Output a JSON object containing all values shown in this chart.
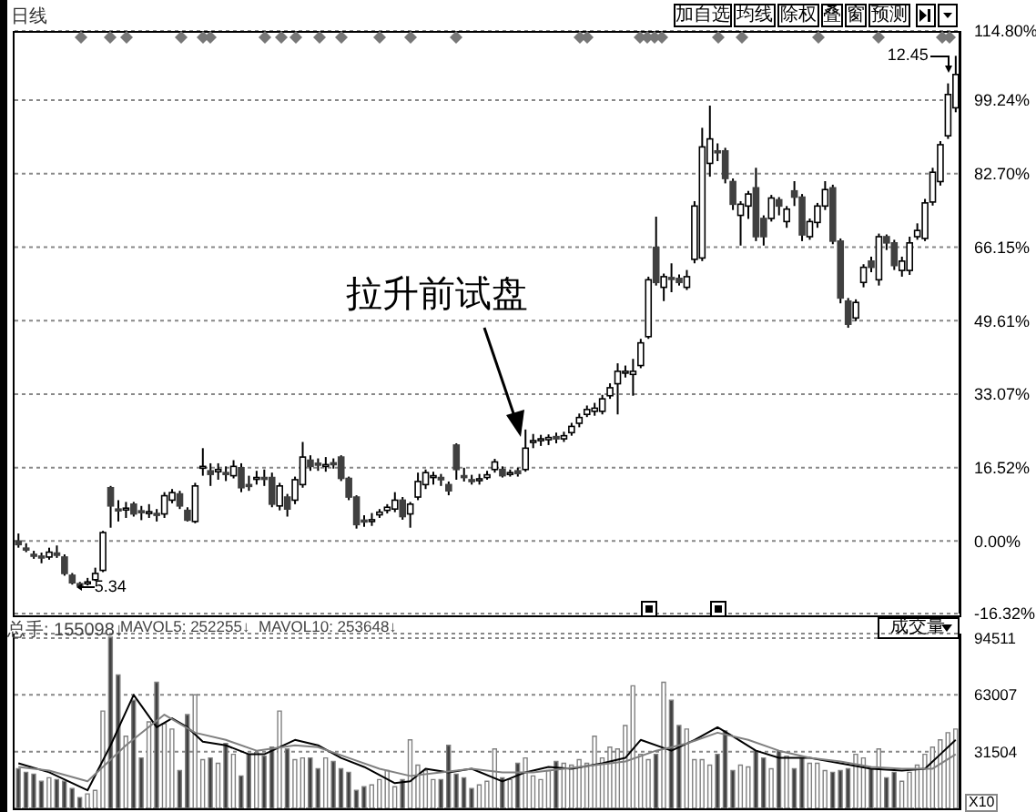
{
  "chart_data": [
    {
      "type": "candlestick",
      "subtitle": "日线",
      "legend": false,
      "grid": "y",
      "tick_labels": "y",
      "categories": [
        null,
        null,
        null,
        null,
        null,
        null,
        null,
        null,
        null,
        null,
        null,
        null,
        null,
        null,
        null,
        null,
        null,
        null,
        null,
        null,
        null,
        null,
        null,
        null,
        null,
        null,
        null,
        null,
        null,
        null,
        null,
        null,
        null,
        null,
        null,
        null,
        null,
        null,
        null,
        null,
        null,
        null,
        null,
        null,
        null,
        null,
        null,
        null,
        null,
        null,
        null,
        null,
        null,
        null,
        null,
        null,
        null,
        null,
        null,
        null,
        null,
        null,
        null,
        null,
        null,
        null,
        null,
        null,
        null,
        null,
        null,
        null,
        null,
        null,
        null,
        null,
        null,
        null,
        null,
        null,
        null,
        null,
        null,
        null,
        null,
        null,
        null,
        null,
        null,
        null,
        null,
        null,
        null,
        null,
        null,
        null,
        null,
        null,
        null,
        null,
        null,
        null,
        null,
        null,
        null,
        null,
        null,
        null,
        null,
        null,
        null,
        null,
        null,
        null,
        null,
        null,
        null,
        null,
        null,
        null,
        null,
        null,
        null
      ],
      "ohlc": [
        [
          0,
          1.7,
          -1.5,
          -0.8
        ],
        [
          -1.6,
          -0.5,
          -2.5,
          -1.8
        ],
        [
          -3.0,
          -2.2,
          -4.0,
          -3.2
        ],
        [
          -3.4,
          -2.6,
          -5.0,
          -3.6
        ],
        [
          -3.6,
          -1.5,
          -4.2,
          -2.5
        ],
        [
          -2.7,
          -1.0,
          -3.8,
          -3.2
        ],
        [
          -3.6,
          -3.0,
          -7.8,
          -7.3
        ],
        [
          -7.7,
          -7.2,
          -9.8,
          -9.4
        ],
        [
          -9.6,
          -9.2,
          -10.3,
          -10.1
        ],
        [
          -9.6,
          -8.3,
          -10.0,
          -9.2
        ],
        [
          -8.7,
          -6.0,
          -9.0,
          -7.3
        ],
        [
          -6.6,
          2.3,
          -7.0,
          1.9
        ],
        [
          12.0,
          12.4,
          3.0,
          7.9
        ],
        [
          7.2,
          9.2,
          4.4,
          6.9
        ],
        [
          7.0,
          8.8,
          5.2,
          7.4
        ],
        [
          8.3,
          8.8,
          5.5,
          6.1
        ],
        [
          6.8,
          7.9,
          4.7,
          6.5
        ],
        [
          6.3,
          8.3,
          5.2,
          6.6
        ],
        [
          6.2,
          7.2,
          4.4,
          5.9
        ],
        [
          6.1,
          11.0,
          5.2,
          10.2
        ],
        [
          9.2,
          11.7,
          8.5,
          10.9
        ],
        [
          10.6,
          11.3,
          7.2,
          7.9
        ],
        [
          6.9,
          7.6,
          4.4,
          4.7
        ],
        [
          4.4,
          13.1,
          4.0,
          12.4
        ],
        [
          16.5,
          20.9,
          14.7,
          16.8
        ],
        [
          15.8,
          17.5,
          12.4,
          15.0
        ],
        [
          15.6,
          17.5,
          13.8,
          16.1
        ],
        [
          15.4,
          16.8,
          13.5,
          15.0
        ],
        [
          14.7,
          18.2,
          14.1,
          16.8
        ],
        [
          16.5,
          17.5,
          11.0,
          12.0
        ],
        [
          12.7,
          14.7,
          11.3,
          12.4
        ],
        [
          13.9,
          15.8,
          12.7,
          14.3
        ],
        [
          14.3,
          16.1,
          12.4,
          14.0
        ],
        [
          14.3,
          15.4,
          7.6,
          8.3
        ],
        [
          7.9,
          13.1,
          6.9,
          12.4
        ],
        [
          9.9,
          10.6,
          5.5,
          7.2
        ],
        [
          9.2,
          14.5,
          8.3,
          13.8
        ],
        [
          12.7,
          22.3,
          12.0,
          18.9
        ],
        [
          18.2,
          19.3,
          15.8,
          16.8
        ],
        [
          17.5,
          18.6,
          15.8,
          17.2
        ],
        [
          16.8,
          18.9,
          15.6,
          17.2
        ],
        [
          17.6,
          18.6,
          16.3,
          17.4
        ],
        [
          18.9,
          19.3,
          13.5,
          14.1
        ],
        [
          14.1,
          14.5,
          9.2,
          9.9
        ],
        [
          9.9,
          10.3,
          2.8,
          3.7
        ],
        [
          4.7,
          5.8,
          3.2,
          4.4
        ],
        [
          4.4,
          6.3,
          3.4,
          4.8
        ],
        [
          5.9,
          7.2,
          5.2,
          6.5
        ],
        [
          6.9,
          8.3,
          6.2,
          7.6
        ],
        [
          7.2,
          11.0,
          6.5,
          9.2
        ],
        [
          9.2,
          9.9,
          4.8,
          5.5
        ],
        [
          6.1,
          8.8,
          3.0,
          8.3
        ],
        [
          9.9,
          15.4,
          9.2,
          13.4
        ],
        [
          12.7,
          16.1,
          11.7,
          15.4
        ],
        [
          14.3,
          15.6,
          12.7,
          14.7
        ],
        [
          14.3,
          15.1,
          12.4,
          13.8
        ],
        [
          12.7,
          13.4,
          10.3,
          11.3
        ],
        [
          21.6,
          22.0,
          13.8,
          16.1
        ],
        [
          14.7,
          16.5,
          13.4,
          14.4
        ],
        [
          13.8,
          14.9,
          12.7,
          13.4
        ],
        [
          13.6,
          15.1,
          12.7,
          14.0
        ],
        [
          14.3,
          15.8,
          13.8,
          14.9
        ],
        [
          16.1,
          18.5,
          15.4,
          17.8
        ],
        [
          16.1,
          16.8,
          14.3,
          14.7
        ],
        [
          15.2,
          16.1,
          14.5,
          15.4
        ],
        [
          15.8,
          16.5,
          14.5,
          15.2
        ],
        [
          16.1,
          25.1,
          15.6,
          20.9
        ],
        [
          22.2,
          24.1,
          20.9,
          22.6
        ],
        [
          22.6,
          23.9,
          21.4,
          23.0
        ],
        [
          22.8,
          24.0,
          21.6,
          23.3
        ],
        [
          23.5,
          24.4,
          22.0,
          23.0
        ],
        [
          23.0,
          24.6,
          22.3,
          23.7
        ],
        [
          24.4,
          26.6,
          23.7,
          25.8
        ],
        [
          26.5,
          28.7,
          25.6,
          27.8
        ],
        [
          28.5,
          30.5,
          27.9,
          29.6
        ],
        [
          29.2,
          31.1,
          28.2,
          29.9
        ],
        [
          29.2,
          32.9,
          28.5,
          32.0
        ],
        [
          32.7,
          35.5,
          32.0,
          34.5
        ],
        [
          35.4,
          40.0,
          28.5,
          38.2
        ],
        [
          37.8,
          39.5,
          36.8,
          38.2
        ],
        [
          37.5,
          41.0,
          32.7,
          38.2
        ],
        [
          39.5,
          45.5,
          38.9,
          44.6
        ],
        [
          46.0,
          59.5,
          45.5,
          58.8
        ],
        [
          66.1,
          73.0,
          57.5,
          58.2
        ],
        [
          57.1,
          60.2,
          54.0,
          59.5
        ],
        [
          59.3,
          62.5,
          56.0,
          59.0
        ],
        [
          59.1,
          60.0,
          57.5,
          58.2
        ],
        [
          57.1,
          61.0,
          56.5,
          59.5
        ],
        [
          63.4,
          76.5,
          62.5,
          75.4
        ],
        [
          63.7,
          93.0,
          63.0,
          88.7
        ],
        [
          85.0,
          98.0,
          82.0,
          90.5
        ],
        [
          87.8,
          89.5,
          85.5,
          87.5
        ],
        [
          87.8,
          88.5,
          80.5,
          81.6
        ],
        [
          80.9,
          81.6,
          74.5,
          75.8
        ],
        [
          73.3,
          76.5,
          66.5,
          75.8
        ],
        [
          75.4,
          78.8,
          72.5,
          78.1
        ],
        [
          79.5,
          84.0,
          67.5,
          68.5
        ],
        [
          72.6,
          73.3,
          66.5,
          68.5
        ],
        [
          72.6,
          77.9,
          71.9,
          77.2
        ],
        [
          76.8,
          77.4,
          73.3,
          75.4
        ],
        [
          71.9,
          75.4,
          70.5,
          74.7
        ],
        [
          78.8,
          81.0,
          75.4,
          77.4
        ],
        [
          77.4,
          78.1,
          67.5,
          68.9
        ],
        [
          68.5,
          72.6,
          67.8,
          71.9
        ],
        [
          71.7,
          76.1,
          70.5,
          75.4
        ],
        [
          75.4,
          81.0,
          74.5,
          79.1
        ],
        [
          79.5,
          80.2,
          66.8,
          67.5
        ],
        [
          67.5,
          68.1,
          53.5,
          54.7
        ],
        [
          54.0,
          54.7,
          48.0,
          48.8
        ],
        [
          50.2,
          54.4,
          49.5,
          53.7
        ],
        [
          58.2,
          62.3,
          57.1,
          61.6
        ],
        [
          63.0,
          64.0,
          60.5,
          61.6
        ],
        [
          58.8,
          69.2,
          57.5,
          68.5
        ],
        [
          68.5,
          69.0,
          65.5,
          67.1
        ],
        [
          67.1,
          67.8,
          61.0,
          62.0
        ],
        [
          60.9,
          64.0,
          59.5,
          63.0
        ],
        [
          60.9,
          68.5,
          59.9,
          67.1
        ],
        [
          68.5,
          71.5,
          67.8,
          69.9
        ],
        [
          68.1,
          77.0,
          67.5,
          76.1
        ],
        [
          76.3,
          84.0,
          75.5,
          83.0
        ],
        [
          80.9,
          90.0,
          80.0,
          89.2
        ],
        [
          91.2,
          103.0,
          90.5,
          100.5
        ],
        [
          97.5,
          109.2,
          96.5,
          105.0
        ]
      ],
      "ylim": [
        -16.32,
        114.8
      ],
      "yticks": [
        {
          "value": -16.32,
          "label": "-16.32%"
        },
        {
          "value": 0,
          "label": "0.00%"
        },
        {
          "value": 16.52,
          "label": "16.52%"
        },
        {
          "value": 33.07,
          "label": "33.07%"
        },
        {
          "value": 49.61,
          "label": "49.61%"
        },
        {
          "value": 66.15,
          "label": "66.15%"
        },
        {
          "value": 82.7,
          "label": "82.70%"
        },
        {
          "value": 99.24,
          "label": "99.24%"
        },
        {
          "value": 114.8,
          "label": "114.80%"
        }
      ],
      "annotations": [
        "拉升前试盘",
        "加自选",
        "均线",
        "除权",
        "叠",
        "窗",
        "预测",
        "5.34",
        "12.45"
      ]
    },
    {
      "type": "bar",
      "legend": false,
      "grid": "y",
      "tick_labels": "y",
      "categories": [
        null,
        null,
        null,
        null,
        null,
        null,
        null,
        null,
        null,
        null,
        null,
        null,
        null,
        null,
        null,
        null,
        null,
        null,
        null,
        null,
        null,
        null,
        null,
        null,
        null,
        null,
        null,
        null,
        null,
        null,
        null,
        null,
        null,
        null,
        null,
        null,
        null,
        null,
        null,
        null,
        null,
        null,
        null,
        null,
        null,
        null,
        null,
        null,
        null,
        null,
        null,
        null,
        null,
        null,
        null,
        null,
        null,
        null,
        null,
        null,
        null,
        null,
        null,
        null,
        null,
        null,
        null,
        null,
        null,
        null,
        null,
        null,
        null,
        null,
        null,
        null,
        null,
        null,
        null,
        null,
        null,
        null,
        null,
        null,
        null,
        null,
        null,
        null,
        null,
        null,
        null,
        null,
        null,
        null,
        null,
        null,
        null,
        null,
        null,
        null,
        null,
        null,
        null,
        null,
        null,
        null,
        null,
        null,
        null,
        null,
        null,
        null,
        null,
        null,
        null,
        null,
        null,
        null,
        null,
        null,
        null,
        null,
        null
      ],
      "series": [
        {
          "type": "bar",
          "values": [
            22000,
            20000,
            19000,
            15000,
            17000,
            16000,
            15000,
            11000,
            6000,
            8000,
            10000,
            54000,
            95000,
            74000,
            40000,
            60000,
            28000,
            48000,
            70000,
            47000,
            44000,
            21000,
            52000,
            63000,
            27000,
            28000,
            25000,
            36000,
            30000,
            18000,
            30000,
            31000,
            29000,
            34000,
            54000,
            33000,
            27000,
            28000,
            28000,
            22000,
            28000,
            26000,
            22000,
            20000,
            10000,
            12000,
            13000,
            16000,
            21000,
            12000,
            16000,
            38000,
            24000,
            21000,
            16000,
            16000,
            35000,
            19000,
            17000,
            11000,
            13000,
            15000,
            33000,
            17000,
            16000,
            25000,
            28000,
            18000,
            16000,
            21000,
            26000,
            25000,
            24000,
            27000,
            25000,
            40000,
            28000,
            34000,
            33000,
            46000,
            68000,
            30000,
            27000,
            30000,
            70000,
            60000,
            46000,
            44000,
            27000,
            27000,
            24000,
            30000,
            43000,
            21000,
            24000,
            23000,
            32000,
            28000,
            22000,
            32000,
            29000,
            22000,
            28000,
            25000,
            25000,
            21000,
            20000,
            21000,
            22000,
            30000,
            28000,
            22000,
            33000,
            17000,
            20000,
            15000,
            20000,
            24000,
            30000,
            34000,
            38000,
            42000,
            44000
          ],
          "colors": [
            "#404040",
            "#404040",
            "#404040",
            "#404040",
            "#ffffff",
            "#404040",
            "#404040",
            "#404040",
            "#404040",
            "#ffffff",
            "#ffffff",
            "#ffffff",
            "#404040",
            "#404040",
            "#ffffff",
            "#404040",
            "#404040",
            "#ffffff",
            "#404040",
            "#ffffff",
            "#ffffff",
            "#404040",
            "#404040",
            "#ffffff",
            "#ffffff",
            "#404040",
            "#ffffff",
            "#404040",
            "#ffffff",
            "#404040",
            "#404040",
            "#ffffff",
            "#404040",
            "#404040",
            "#ffffff",
            "#404040",
            "#ffffff",
            "#ffffff",
            "#404040",
            "#404040",
            "#ffffff",
            "#404040",
            "#404040",
            "#404040",
            "#404040",
            "#404040",
            "#ffffff",
            "#ffffff",
            "#ffffff",
            "#ffffff",
            "#404040",
            "#ffffff",
            "#ffffff",
            "#ffffff",
            "#ffffff",
            "#404040",
            "#404040",
            "#404040",
            "#404040",
            "#404040",
            "#ffffff",
            "#ffffff",
            "#ffffff",
            "#404040",
            "#ffffff",
            "#404040",
            "#ffffff",
            "#ffffff",
            "#ffffff",
            "#ffffff",
            "#404040",
            "#ffffff",
            "#ffffff",
            "#ffffff",
            "#ffffff",
            "#ffffff",
            "#ffffff",
            "#ffffff",
            "#ffffff",
            "#ffffff",
            "#ffffff",
            "#ffffff",
            "#ffffff",
            "#404040",
            "#ffffff",
            "#404040",
            "#404040",
            "#ffffff",
            "#ffffff",
            "#ffffff",
            "#ffffff",
            "#404040",
            "#404040",
            "#404040",
            "#ffffff",
            "#ffffff",
            "#404040",
            "#404040",
            "#ffffff",
            "#404040",
            "#ffffff",
            "#404040",
            "#404040",
            "#ffffff",
            "#ffffff",
            "#ffffff",
            "#404040",
            "#404040",
            "#404040",
            "#ffffff",
            "#ffffff",
            "#404040",
            "#ffffff",
            "#404040",
            "#404040",
            "#ffffff",
            "#ffffff",
            "#ffffff",
            "#ffffff",
            "#ffffff",
            "#ffffff",
            "#ffffff",
            "#ffffff"
          ]
        },
        {
          "type": "line",
          "color": "#000000",
          "values": [
            25000,
            null,
            null,
            null,
            20000,
            null,
            null,
            null,
            null,
            10000,
            null,
            null,
            35000,
            null,
            null,
            63000,
            null,
            null,
            45000,
            null,
            50000,
            null,
            45000,
            null,
            37000,
            null,
            null,
            35000,
            null,
            null,
            30000,
            null,
            30000,
            null,
            null,
            null,
            38000,
            null,
            null,
            35000,
            null,
            null,
            28000,
            null,
            null,
            23000,
            null,
            null,
            null,
            14000,
            null,
            15000,
            null,
            22000,
            null,
            null,
            20000,
            null,
            null,
            22000,
            null,
            null,
            null,
            15000,
            null,
            null,
            20000,
            null,
            null,
            23000,
            null,
            null,
            22000,
            null,
            null,
            null,
            25000,
            null,
            null,
            28000,
            null,
            38000,
            null,
            null,
            null,
            32000,
            null,
            null,
            38000,
            null,
            null,
            45000,
            null,
            40000,
            null,
            null,
            32000,
            null,
            null,
            28000,
            null,
            null,
            null,
            28000,
            null,
            null,
            null,
            25000,
            null,
            null,
            null,
            22000,
            null,
            null,
            null,
            21000,
            null,
            null,
            22000,
            null,
            30000,
            null,
            38000
          ]
        },
        {
          "type": "line",
          "color": "#808080",
          "values": [
            23000,
            null,
            null,
            null,
            21000,
            null,
            null,
            null,
            null,
            15000,
            null,
            null,
            null,
            null,
            35000,
            null,
            null,
            null,
            null,
            52000,
            null,
            null,
            null,
            42000,
            null,
            null,
            null,
            38000,
            null,
            null,
            null,
            32000,
            null,
            null,
            null,
            null,
            35000,
            null,
            null,
            34000,
            null,
            null,
            null,
            28000,
            null,
            null,
            null,
            22000,
            null,
            null,
            null,
            18000,
            null,
            null,
            null,
            20000,
            null,
            null,
            null,
            22000,
            null,
            null,
            null,
            20000,
            null,
            null,
            null,
            20000,
            null,
            null,
            null,
            22000,
            null,
            null,
            null,
            24000,
            null,
            null,
            null,
            26000,
            null,
            null,
            null,
            32000,
            null,
            null,
            null,
            36000,
            null,
            null,
            null,
            42000,
            null,
            null,
            null,
            38000,
            null,
            null,
            null,
            32000,
            null,
            null,
            null,
            28000,
            null,
            null,
            null,
            26000,
            null,
            null,
            null,
            23000,
            null,
            null,
            null,
            22000,
            null,
            null,
            null,
            22000,
            null,
            null,
            30000
          ]
        }
      ],
      "ylim": [
        0,
        97000
      ],
      "yticks": [
        31504,
        63007,
        94511
      ],
      "annotations": [
        "总手: 155098↓",
        "MAVOL5: 252255↓",
        "MAVOL10: 253648↓",
        "成交量",
        "X10"
      ]
    }
  ]
}
